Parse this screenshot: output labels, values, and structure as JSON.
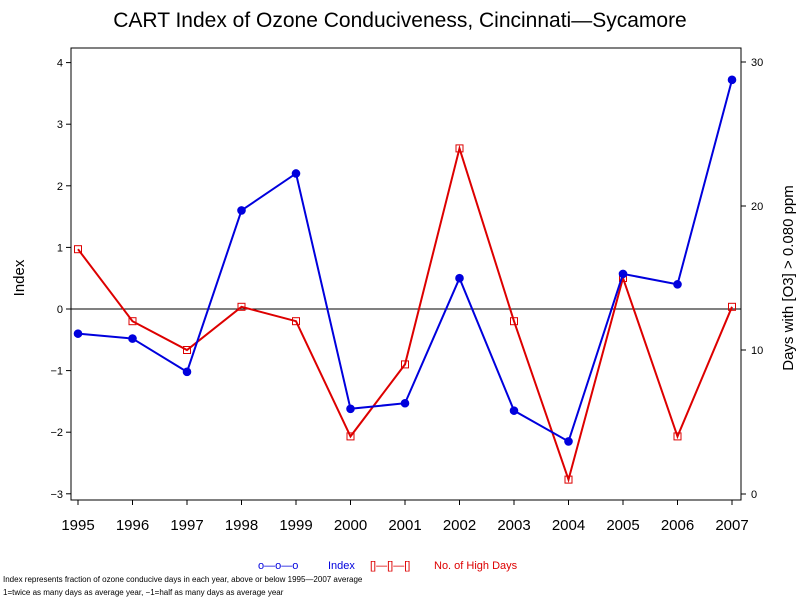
{
  "chart_data": {
    "type": "line",
    "title": "CART Index of Ozone Conduciveness, Cincinnati—Sycamore",
    "categories": [
      "1995",
      "1996",
      "1997",
      "1998",
      "1999",
      "2000",
      "2001",
      "2002",
      "2003",
      "2004",
      "2005",
      "2006",
      "2007"
    ],
    "y_left": {
      "label": "Index",
      "range": [
        -3,
        4
      ],
      "ticks": [
        4,
        3,
        2,
        1,
        0,
        -1,
        -2,
        -3
      ]
    },
    "y_right": {
      "label": "Days with [O3] > 0.080 ppm",
      "range": [
        0,
        30
      ],
      "ticks": [
        30,
        20,
        10,
        0
      ]
    },
    "reference_line": 0,
    "series": [
      {
        "name": "Index",
        "axis": "left",
        "color": "#0000dd",
        "marker": "filled-circle",
        "values": [
          -0.4,
          -0.48,
          -1.02,
          1.6,
          2.2,
          -1.62,
          -1.53,
          0.5,
          -1.65,
          -2.15,
          0.57,
          0.4,
          3.72
        ]
      },
      {
        "name": "No. of High Days",
        "axis": "right",
        "color": "#dd0000",
        "marker": "open-square",
        "values": [
          17,
          12,
          10,
          13,
          12,
          4,
          9,
          24,
          12,
          1,
          15,
          4,
          13
        ]
      }
    ],
    "legend": {
      "position": "bottom-center",
      "index_symbol": "o—o—o",
      "index_label": "Index",
      "days_symbol": "[]—[]—[]",
      "days_label": "No. of High Days"
    },
    "footnotes": [
      "Index represents fraction of ozone conducive days in each year, above or below 1995—2007 average",
      "1=twice as many days as average year, −1=half as many days as average year"
    ]
  }
}
